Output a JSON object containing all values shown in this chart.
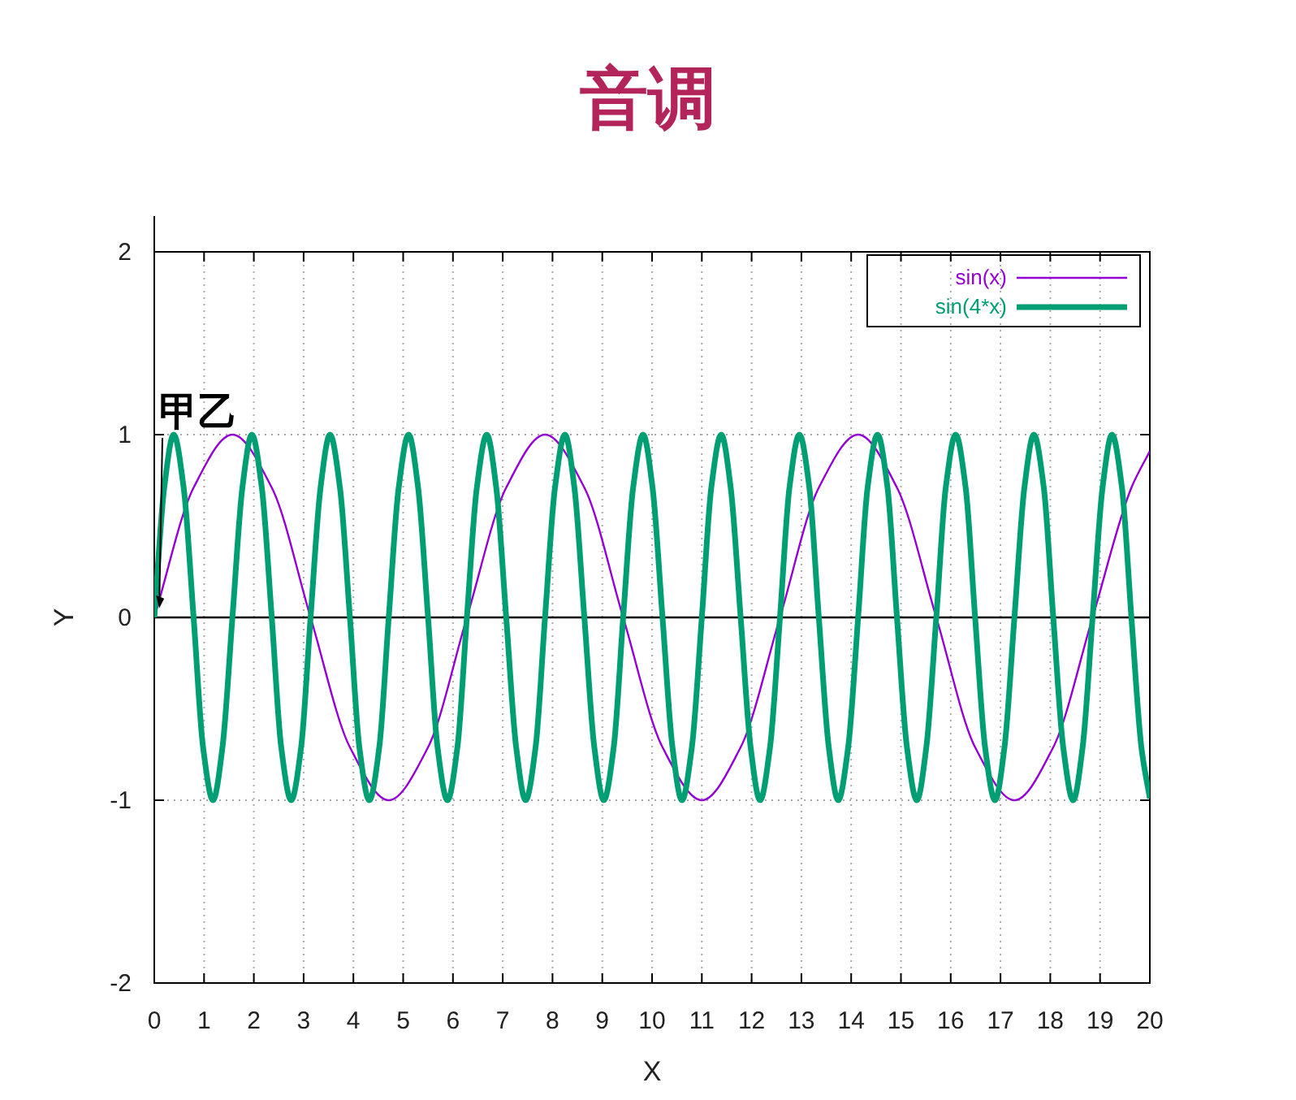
{
  "chart_data": {
    "type": "line",
    "title": "音调",
    "xlabel": "X",
    "ylabel": "Y",
    "xlim": [
      0,
      20
    ],
    "ylim": [
      -2,
      2
    ],
    "xticks": [
      0,
      1,
      2,
      3,
      4,
      5,
      6,
      7,
      8,
      9,
      10,
      11,
      12,
      13,
      14,
      15,
      16,
      17,
      18,
      19,
      20
    ],
    "yticks": [
      -2,
      -1,
      0,
      1,
      2
    ],
    "grid": true,
    "legend": "top right",
    "line_style": "solid",
    "marker": "none",
    "ref_lines": [
      {
        "axis": "y",
        "value": 0,
        "color": "#000000",
        "line_style": "solid"
      }
    ],
    "annotations": [
      {
        "text": "甲乙",
        "x": 0.1,
        "y": 0.05
      }
    ],
    "series": [
      {
        "name": "sin(x)",
        "color": "#9400d3",
        "x": [
          0,
          0.79,
          1.57,
          2.36,
          3.14,
          3.93,
          4.71,
          5.5,
          6.28,
          7.07,
          7.85,
          8.64,
          9.42,
          10.21,
          11,
          11.78,
          12.57,
          13.35,
          14.14,
          14.92,
          15.71,
          16.49,
          17.28,
          18.06,
          18.85,
          19.63,
          20
        ],
        "values": [
          0,
          0.71,
          1,
          0.71,
          0,
          -0.71,
          -1,
          -0.71,
          0,
          0.71,
          1,
          0.71,
          0,
          -0.71,
          -1,
          -0.71,
          0,
          0.71,
          1,
          0.71,
          0,
          -0.71,
          -1,
          -0.71,
          0,
          0.71,
          0.91
        ]
      },
      {
        "name": "sin(4*x)",
        "color": "#009e73",
        "x": [
          0,
          0.2,
          0.39,
          0.59,
          0.79,
          0.98,
          1.18,
          1.37,
          1.57,
          1.77,
          1.96,
          2.16,
          2.36,
          2.55,
          2.75,
          2.95,
          3.14,
          3.34,
          3.53,
          3.73,
          3.93,
          4.12,
          4.32,
          4.52,
          4.71,
          4.91,
          5.11,
          5.3,
          5.5,
          5.69,
          5.89,
          6.09,
          6.28,
          6.48,
          6.68,
          6.87,
          7.07,
          7.27,
          7.46,
          7.66,
          7.85,
          8.05,
          8.25,
          8.44,
          8.64,
          8.84,
          9.03,
          9.23,
          9.42,
          9.62,
          9.82,
          10.01,
          10.21,
          10.41,
          10.6,
          10.8,
          11,
          11.19,
          11.39,
          11.58,
          11.78,
          11.98,
          12.17,
          12.37,
          12.57,
          12.76,
          12.96,
          13.16,
          13.35,
          13.55,
          13.74,
          13.94,
          14.14,
          14.33,
          14.53,
          14.73,
          14.92,
          15.12,
          15.32,
          15.51,
          15.71,
          15.9,
          16.1,
          16.3,
          16.49,
          16.69,
          16.89,
          17.08,
          17.28,
          17.48,
          17.67,
          17.87,
          18.06,
          18.26,
          18.46,
          18.65,
          18.85,
          19.05,
          19.24,
          19.44,
          19.63,
          19.83,
          20
        ],
        "values": [
          0,
          0.71,
          1,
          0.71,
          0,
          -0.71,
          -1,
          -0.71,
          0,
          0.71,
          1,
          0.71,
          0,
          -0.71,
          -1,
          -0.71,
          0,
          0.71,
          1,
          0.71,
          0,
          -0.71,
          -1,
          -0.71,
          0,
          0.71,
          1,
          0.71,
          0,
          -0.71,
          -1,
          -0.71,
          0,
          0.71,
          1,
          0.71,
          0,
          -0.71,
          -1,
          -0.71,
          0,
          0.71,
          1,
          0.71,
          0,
          -0.71,
          -1,
          -0.71,
          0,
          0.71,
          1,
          0.71,
          0,
          -0.71,
          -1,
          -0.71,
          0,
          0.71,
          1,
          0.71,
          0,
          -0.71,
          -1,
          -0.71,
          0,
          0.71,
          1,
          0.71,
          0,
          -0.71,
          -1,
          -0.71,
          0,
          0.71,
          1,
          0.71,
          0,
          -0.71,
          -1,
          -0.71,
          0,
          0.71,
          1,
          0.71,
          0,
          -0.71,
          -1,
          -0.71,
          0,
          0.71,
          1,
          0.71,
          0,
          -0.71,
          -1,
          -0.71,
          0,
          0.71,
          1,
          0.71,
          0,
          -0.71,
          -0.99
        ]
      }
    ]
  }
}
